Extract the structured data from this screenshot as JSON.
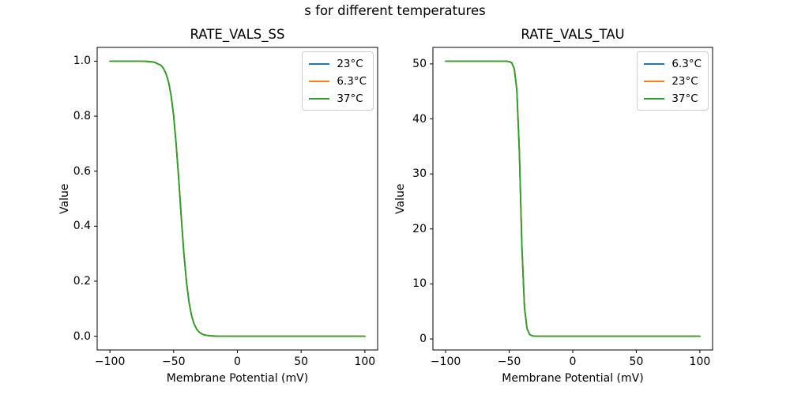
{
  "figure": {
    "suptitle": "s for different temperatures"
  },
  "chart_data": [
    {
      "type": "line",
      "title": "RATE_VALS_SS",
      "xlabel": "Membrane Potential (mV)",
      "ylabel": "Value",
      "xlim": [
        -110,
        110
      ],
      "ylim": [
        -0.05,
        1.05
      ],
      "grid": false,
      "legend_position": "upper right",
      "xticks": {
        "values": [
          -100,
          -50,
          0,
          50,
          100
        ],
        "labels": [
          "−100",
          "−50",
          "0",
          "50",
          "100"
        ]
      },
      "yticks": {
        "values": [
          0.0,
          0.2,
          0.4,
          0.6,
          0.8,
          1.0
        ],
        "labels": [
          "0.0",
          "0.2",
          "0.4",
          "0.6",
          "0.8",
          "1.0"
        ]
      },
      "legend": [
        {
          "label": "23°C",
          "color": "#1f77b4"
        },
        {
          "label": "6.3°C",
          "color": "#ff7f0e"
        },
        {
          "label": "37°C",
          "color": "#2ca02c"
        }
      ],
      "overlap_note": "all three temperature curves coincide exactly; the 37°C green line drawn last is the visible one",
      "x": [
        -100,
        -90,
        -80,
        -75,
        -70,
        -65,
        -62,
        -60,
        -58,
        -56,
        -54,
        -52,
        -50,
        -48,
        -46,
        -44,
        -42,
        -40,
        -38,
        -36,
        -34,
        -32,
        -30,
        -28,
        -26,
        -24,
        -22,
        -20,
        -15,
        -10,
        0,
        25,
        50,
        75,
        100
      ],
      "series": [
        {
          "name": "23°C",
          "color": "#1f77b4",
          "values": [
            1.0,
            1.0,
            1.0,
            1.0,
            0.999,
            0.996,
            0.989,
            0.985,
            0.974,
            0.955,
            0.924,
            0.875,
            0.801,
            0.697,
            0.569,
            0.431,
            0.303,
            0.199,
            0.125,
            0.076,
            0.045,
            0.026,
            0.015,
            0.009,
            0.005,
            0.003,
            0.002,
            0.001,
            0.0,
            0.0,
            0.0,
            0.0,
            0.0,
            0.0,
            0.0
          ]
        },
        {
          "name": "6.3°C",
          "color": "#ff7f0e",
          "values": [
            1.0,
            1.0,
            1.0,
            1.0,
            0.999,
            0.996,
            0.989,
            0.985,
            0.974,
            0.955,
            0.924,
            0.875,
            0.801,
            0.697,
            0.569,
            0.431,
            0.303,
            0.199,
            0.125,
            0.076,
            0.045,
            0.026,
            0.015,
            0.009,
            0.005,
            0.003,
            0.002,
            0.001,
            0.0,
            0.0,
            0.0,
            0.0,
            0.0,
            0.0,
            0.0
          ]
        },
        {
          "name": "37°C",
          "color": "#2ca02c",
          "values": [
            1.0,
            1.0,
            1.0,
            1.0,
            0.999,
            0.996,
            0.989,
            0.985,
            0.974,
            0.955,
            0.924,
            0.875,
            0.801,
            0.697,
            0.569,
            0.431,
            0.303,
            0.199,
            0.125,
            0.076,
            0.045,
            0.026,
            0.015,
            0.009,
            0.005,
            0.003,
            0.002,
            0.001,
            0.0,
            0.0,
            0.0,
            0.0,
            0.0,
            0.0,
            0.0
          ]
        }
      ]
    },
    {
      "type": "line",
      "title": "RATE_VALS_TAU",
      "xlabel": "Membrane Potential (mV)",
      "ylabel": "Value",
      "xlim": [
        -110,
        110
      ],
      "ylim": [
        -2,
        53
      ],
      "grid": false,
      "legend_position": "upper right",
      "xticks": {
        "values": [
          -100,
          -50,
          0,
          50,
          100
        ],
        "labels": [
          "−100",
          "−50",
          "0",
          "50",
          "100"
        ]
      },
      "yticks": {
        "values": [
          0,
          10,
          20,
          30,
          40,
          50
        ],
        "labels": [
          "0",
          "10",
          "20",
          "30",
          "40",
          "50"
        ]
      },
      "legend": [
        {
          "label": "6.3°C",
          "color": "#1f77b4"
        },
        {
          "label": "23°C",
          "color": "#ff7f0e"
        },
        {
          "label": "37°C",
          "color": "#2ca02c"
        }
      ],
      "overlap_note": "all three temperature curves coincide exactly; the 37°C green line drawn last is the visible one",
      "x": [
        -100,
        -90,
        -80,
        -75,
        -70,
        -65,
        -62,
        -60,
        -58,
        -56,
        -54,
        -52,
        -50,
        -48,
        -46,
        -44,
        -42,
        -40,
        -38,
        -36,
        -34,
        -32,
        -30,
        -28,
        -26,
        -24,
        -22,
        -20,
        -15,
        -10,
        0,
        25,
        50,
        75,
        100
      ],
      "series": [
        {
          "name": "6.3°C",
          "color": "#1f77b4",
          "values": [
            50.5,
            50.5,
            50.5,
            50.5,
            50.5,
            50.5,
            50.5,
            50.5,
            50.5,
            50.5,
            50.5,
            50.48,
            50.42,
            50.2,
            49.1,
            45.3,
            34.1,
            16.9,
            5.7,
            1.9,
            0.84,
            0.58,
            0.52,
            0.51,
            0.5,
            0.5,
            0.5,
            0.5,
            0.5,
            0.5,
            0.5,
            0.5,
            0.5,
            0.5,
            0.5
          ]
        },
        {
          "name": "23°C",
          "color": "#ff7f0e",
          "values": [
            50.5,
            50.5,
            50.5,
            50.5,
            50.5,
            50.5,
            50.5,
            50.5,
            50.5,
            50.5,
            50.5,
            50.48,
            50.42,
            50.2,
            49.1,
            45.3,
            34.1,
            16.9,
            5.7,
            1.9,
            0.84,
            0.58,
            0.52,
            0.51,
            0.5,
            0.5,
            0.5,
            0.5,
            0.5,
            0.5,
            0.5,
            0.5,
            0.5,
            0.5,
            0.5
          ]
        },
        {
          "name": "37°C",
          "color": "#2ca02c",
          "values": [
            50.5,
            50.5,
            50.5,
            50.5,
            50.5,
            50.5,
            50.5,
            50.5,
            50.5,
            50.5,
            50.5,
            50.48,
            50.42,
            50.2,
            49.1,
            45.3,
            34.1,
            16.9,
            5.7,
            1.9,
            0.84,
            0.58,
            0.52,
            0.51,
            0.5,
            0.5,
            0.5,
            0.5,
            0.5,
            0.5,
            0.5,
            0.5,
            0.5,
            0.5,
            0.5
          ]
        }
      ]
    }
  ]
}
